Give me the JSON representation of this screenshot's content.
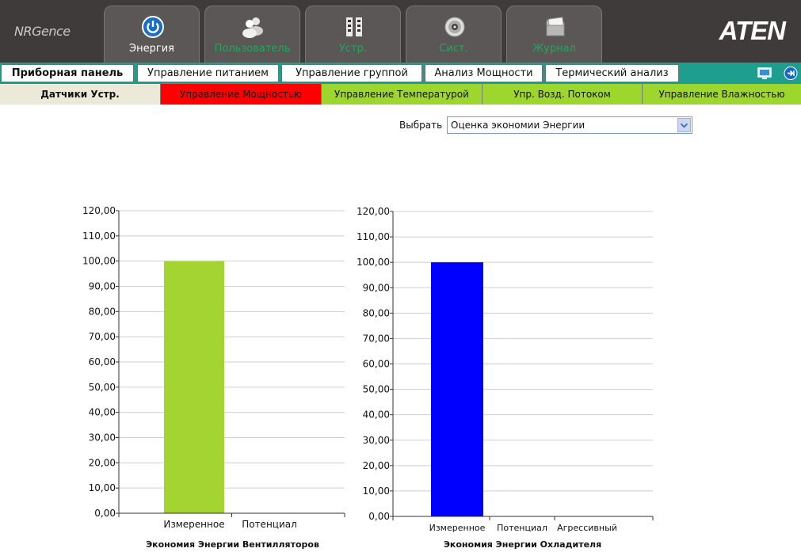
{
  "header": {
    "logo": "NRGence",
    "brand": "ATEN",
    "tabs": [
      {
        "label": "Энергия",
        "icon": "power-icon",
        "active": true
      },
      {
        "label": "Пользователь",
        "icon": "users-icon",
        "active": false
      },
      {
        "label": "Устр.",
        "icon": "grid-icon",
        "active": false
      },
      {
        "label": "Сист.",
        "icon": "gear-icon",
        "active": false
      },
      {
        "label": "Журнал",
        "icon": "folder-icon",
        "active": false
      }
    ]
  },
  "subnav": {
    "items": [
      {
        "label": "Приборная панель",
        "active": true
      },
      {
        "label": "Управление питанием",
        "active": false
      },
      {
        "label": "Управление группой",
        "active": false
      },
      {
        "label": "Анализ Мощности",
        "active": false
      },
      {
        "label": "Термический анализ",
        "active": false
      }
    ],
    "right_icons": [
      "monitor-icon",
      "logout-icon"
    ]
  },
  "tertiary": {
    "items": [
      {
        "label": "Датчики Устр.",
        "color": "#ece9d8",
        "active": true
      },
      {
        "label": "Управление Мощностью",
        "color": "#ff0000",
        "active": false
      },
      {
        "label": "Управление Температурой",
        "color": "#9dd62d",
        "active": false
      },
      {
        "label": "Упр. Возд. Потоком",
        "color": "#9dd62d",
        "active": false
      },
      {
        "label": "Управление Влажностью",
        "color": "#9dd62d",
        "active": false
      }
    ]
  },
  "select": {
    "label": "Выбрать",
    "value": "Оценка экономии Энергии"
  },
  "chart_data": [
    {
      "type": "bar",
      "title": "Экономия Энергии Вентилляторов",
      "categories": [
        "Измеренное",
        "Потенциал"
      ],
      "values": [
        100,
        0
      ],
      "color": "#a4d431",
      "ylim": [
        0,
        120
      ],
      "yticks": [
        "0,00",
        "10,00",
        "20,00",
        "30,00",
        "40,00",
        "50,00",
        "60,00",
        "70,00",
        "80,00",
        "90,00",
        "100,00",
        "110,00",
        "120,00"
      ],
      "grid": true
    },
    {
      "type": "bar",
      "title": "Экономия Энергии Охладителя",
      "categories": [
        "Измеренное",
        "Потенциал",
        "Агрессивный"
      ],
      "values": [
        100,
        0,
        0
      ],
      "color": "#0000ff",
      "ylim": [
        0,
        120
      ],
      "yticks": [
        "0,00",
        "10,00",
        "20,00",
        "30,00",
        "40,00",
        "50,00",
        "60,00",
        "70,00",
        "80,00",
        "90,00",
        "100,00",
        "110,00",
        "120,00"
      ],
      "grid": true
    }
  ]
}
